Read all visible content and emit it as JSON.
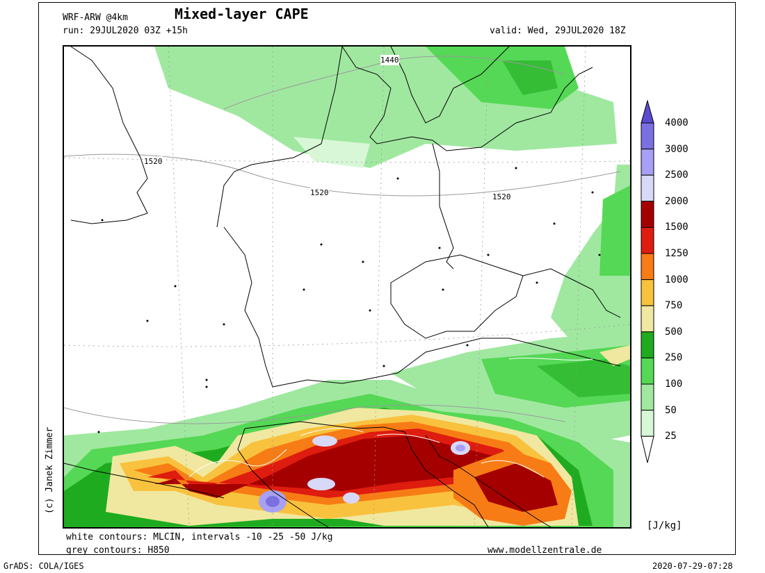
{
  "header": {
    "model": "WRF-ARW @4km",
    "title": "Mixed-layer CAPE",
    "run": "run: 29JUL2020 03Z +15h",
    "valid": "valid: Wed, 29JUL2020 18Z"
  },
  "map": {
    "h850_labels": [
      "1440",
      "1520",
      "1520",
      "1520"
    ]
  },
  "colorbar": {
    "unit": "[J/kg]",
    "levels": [
      "25",
      "50",
      "100",
      "250",
      "500",
      "750",
      "1000",
      "1250",
      "1500",
      "2000",
      "2500",
      "3000",
      "4000"
    ],
    "colors": [
      "#d7f7d7",
      "#a0e8a0",
      "#55d855",
      "#1fab1f",
      "#f0e8a0",
      "#f9c23e",
      "#f77c15",
      "#de1c0f",
      "#a50000",
      "#d8d8f8",
      "#a8a0f5",
      "#7b70e0",
      "#5b4bd0"
    ]
  },
  "footer": {
    "white_contours": "white contours: MLCIN, intervals -10 -25 -50 J/kg",
    "grey_contours": "grey contours: H850",
    "website": "www.modellzentrale.de",
    "grads": "GrADS: COLA/IGES",
    "timestamp": "2020-07-29-07:28",
    "credit": "(c) Janek Zimmer"
  }
}
